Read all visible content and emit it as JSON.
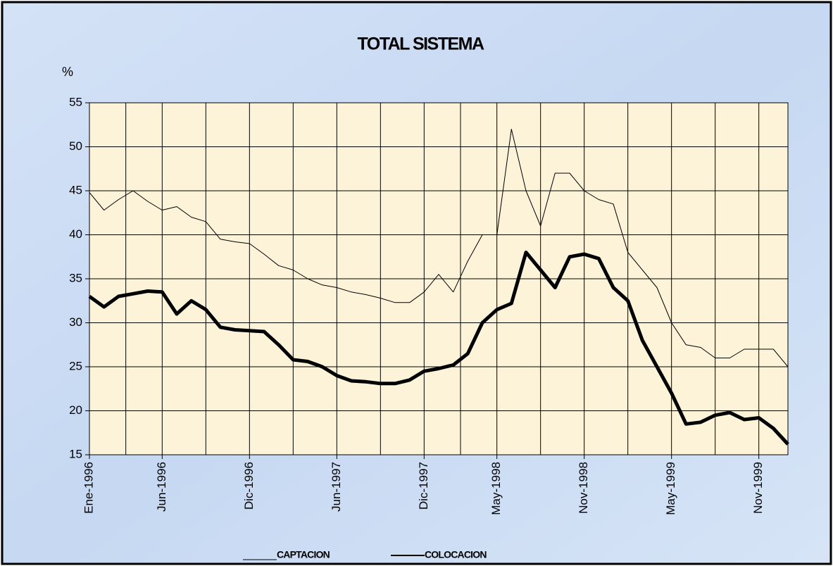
{
  "chart_data": {
    "type": "line",
    "title": "TOTAL SISTEMA",
    "ylabel": "%",
    "x": [
      "Ene-1996",
      "Feb-1996",
      "Mar-1996",
      "Abr-1996",
      "May-1996",
      "Jun-1996",
      "Jul-1996",
      "Ago-1996",
      "Sep-1996",
      "Oct-1996",
      "Nov-1996",
      "Dic-1996",
      "Ene-1997",
      "Feb-1997",
      "Mar-1997",
      "Abr-1997",
      "May-1997",
      "Jun-1997",
      "Jul-1997",
      "Ago-1997",
      "Sep-1997",
      "Oct-1997",
      "Nov-1997",
      "Dic-1997",
      "Ene-1998",
      "Feb-1998",
      "Mar-1998",
      "Abr-1998",
      "May-1998",
      "Jun-1998",
      "Jul-1998",
      "Ago-1998",
      "Sep-1998",
      "Oct-1998",
      "Nov-1998",
      "Dic-1998",
      "Ene-1999",
      "Feb-1999",
      "Mar-1999",
      "Abr-1999",
      "May-1999",
      "Jun-1999",
      "Jul-1999",
      "Ago-1999",
      "Sep-1999",
      "Oct-1999",
      "Nov-1999",
      "Dic-1999",
      "Ene-2000"
    ],
    "series": [
      {
        "name": "CAPTACION",
        "color": "#000000",
        "width": 1,
        "values": [
          44.8,
          42.8,
          44,
          45,
          43.8,
          42.8,
          43.2,
          42,
          41.5,
          39.5,
          39.2,
          39,
          37.8,
          36.5,
          36,
          35,
          34.3,
          34,
          33.5,
          33.2,
          32.8,
          32.3,
          32.3,
          33.5,
          35.5,
          33.5,
          37,
          40,
          40,
          52,
          45,
          41,
          47,
          47,
          45,
          44,
          43.5,
          38,
          36,
          34,
          30,
          27.5,
          27.2,
          26,
          26,
          27,
          27,
          27,
          25
        ]
      },
      {
        "name": "COLOCACION",
        "color": "#000000",
        "width": 5,
        "values": [
          33,
          31.8,
          33,
          33.3,
          33.6,
          33.5,
          31,
          32.5,
          31.5,
          29.5,
          29.2,
          29.1,
          29,
          27.5,
          25.8,
          25.6,
          25,
          24,
          23.4,
          23.3,
          23.1,
          23.1,
          23.5,
          24.5,
          24.8,
          25.2,
          26.5,
          30,
          31.5,
          32.2,
          38,
          36,
          34,
          37.5,
          37.8,
          37.3,
          34,
          32.5,
          28,
          25,
          22,
          18.5,
          18.7,
          19.5,
          19.8,
          19,
          19.2,
          18,
          16.2
        ]
      }
    ],
    "xticks": [
      "Ene-1996",
      "Jun-1996",
      "Dic-1996",
      "Jun-1997",
      "Dic-1997",
      "May-1998",
      "Nov-1998",
      "May-1999",
      "Nov-1999"
    ],
    "ylim": [
      15,
      55
    ],
    "yticks": [
      15,
      20,
      25,
      30,
      35,
      40,
      45,
      50,
      55
    ],
    "grid": true
  }
}
